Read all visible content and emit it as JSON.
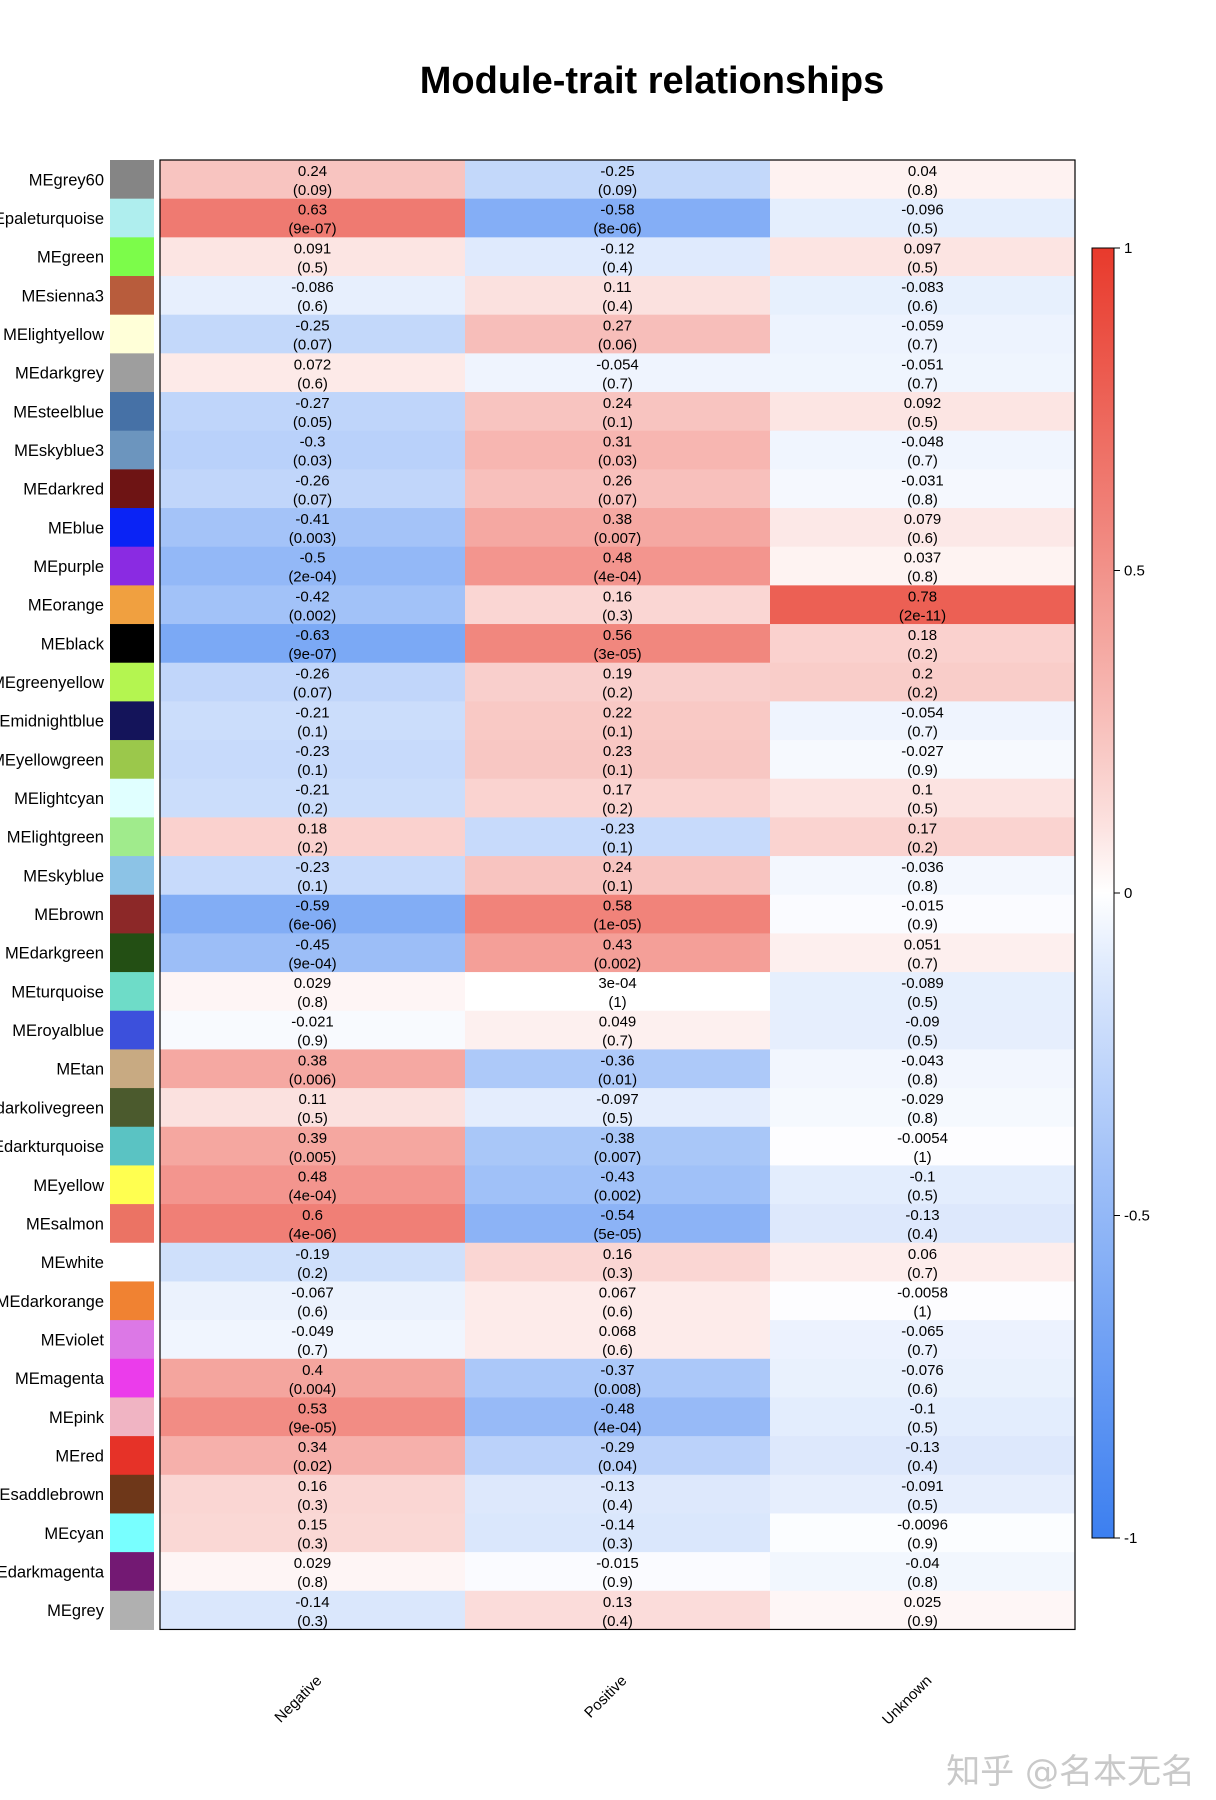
{
  "watermark": "知乎 @名本无名",
  "chart_data": {
    "type": "heatmap",
    "title": "Module-trait relationships",
    "columns": [
      "Negative",
      "Positive",
      "Unknown"
    ],
    "scale": {
      "min": -1,
      "max": 1,
      "ticks": [
        "1",
        "0.5",
        "0",
        "-0.5",
        "-1"
      ],
      "colors": [
        "#3c7ff0",
        "#ffffff",
        "#e83a2c"
      ]
    },
    "rows": [
      {
        "label": "MEgrey60",
        "color": "#858585",
        "values": [
          0.24,
          -0.25,
          0.04
        ],
        "pvalues": [
          "(0.09)",
          "(0.09)",
          "(0.8)"
        ]
      },
      {
        "label": "MEpaleturquoise",
        "color": "#afeeee",
        "values": [
          0.63,
          -0.58,
          -0.096
        ],
        "pvalues": [
          "(9e-07)",
          "(8e-06)",
          "(0.5)"
        ]
      },
      {
        "label": "MEgreen",
        "color": "#7cfc4a",
        "values": [
          0.091,
          -0.12,
          0.097
        ],
        "pvalues": [
          "(0.5)",
          "(0.4)",
          "(0.5)"
        ]
      },
      {
        "label": "MEsienna3",
        "color": "#b85c3c",
        "values": [
          -0.086,
          0.11,
          -0.083
        ],
        "pvalues": [
          "(0.6)",
          "(0.4)",
          "(0.6)"
        ]
      },
      {
        "label": "MElightyellow",
        "color": "#ffffd8",
        "values": [
          -0.25,
          0.27,
          -0.059
        ],
        "pvalues": [
          "(0.07)",
          "(0.06)",
          "(0.7)"
        ]
      },
      {
        "label": "MEdarkgrey",
        "color": "#9e9e9e",
        "values": [
          0.072,
          -0.054,
          -0.051
        ],
        "pvalues": [
          "(0.6)",
          "(0.7)",
          "(0.7)"
        ]
      },
      {
        "label": "MEsteelblue",
        "color": "#4671a6",
        "values": [
          -0.27,
          0.24,
          0.092
        ],
        "pvalues": [
          "(0.05)",
          "(0.1)",
          "(0.5)"
        ]
      },
      {
        "label": "MEskyblue3",
        "color": "#6c95be",
        "values": [
          -0.3,
          0.31,
          -0.048
        ],
        "pvalues": [
          "(0.03)",
          "(0.03)",
          "(0.7)"
        ]
      },
      {
        "label": "MEdarkred",
        "color": "#6e1414",
        "values": [
          -0.26,
          0.26,
          -0.031
        ],
        "pvalues": [
          "(0.07)",
          "(0.07)",
          "(0.8)"
        ]
      },
      {
        "label": "MEblue",
        "color": "#0a23f5",
        "values": [
          -0.41,
          0.38,
          0.079
        ],
        "pvalues": [
          "(0.003)",
          "(0.007)",
          "(0.6)"
        ]
      },
      {
        "label": "MEpurple",
        "color": "#8a2be2",
        "values": [
          -0.5,
          0.48,
          0.037
        ],
        "pvalues": [
          "(2e-04)",
          "(4e-04)",
          "(0.8)"
        ]
      },
      {
        "label": "MEorange",
        "color": "#f0a040",
        "values": [
          -0.42,
          0.16,
          0.78
        ],
        "pvalues": [
          "(0.002)",
          "(0.3)",
          "(2e-11)"
        ]
      },
      {
        "label": "MEblack",
        "color": "#000000",
        "values": [
          -0.63,
          0.56,
          0.18
        ],
        "pvalues": [
          "(9e-07)",
          "(3e-05)",
          "(0.2)"
        ]
      },
      {
        "label": "MEgreenyellow",
        "color": "#b4f550",
        "values": [
          -0.26,
          0.19,
          0.2
        ],
        "pvalues": [
          "(0.07)",
          "(0.2)",
          "(0.2)"
        ]
      },
      {
        "label": "MEmidnightblue",
        "color": "#14145a",
        "values": [
          -0.21,
          0.22,
          -0.054
        ],
        "pvalues": [
          "(0.1)",
          "(0.1)",
          "(0.7)"
        ]
      },
      {
        "label": "MEyellowgreen",
        "color": "#9bc84b",
        "values": [
          -0.23,
          0.23,
          -0.027
        ],
        "pvalues": [
          "(0.1)",
          "(0.1)",
          "(0.9)"
        ]
      },
      {
        "label": "MElightcyan",
        "color": "#e0ffff",
        "values": [
          -0.21,
          0.17,
          0.1
        ],
        "pvalues": [
          "(0.2)",
          "(0.2)",
          "(0.5)"
        ]
      },
      {
        "label": "MElightgreen",
        "color": "#a0eb8c",
        "values": [
          0.18,
          -0.23,
          0.17
        ],
        "pvalues": [
          "(0.2)",
          "(0.1)",
          "(0.2)"
        ]
      },
      {
        "label": "MEskyblue",
        "color": "#8cc3e6",
        "values": [
          -0.23,
          0.24,
          -0.036
        ],
        "pvalues": [
          "(0.1)",
          "(0.1)",
          "(0.8)"
        ]
      },
      {
        "label": "MEbrown",
        "color": "#8c2828",
        "values": [
          -0.59,
          0.58,
          -0.015
        ],
        "pvalues": [
          "(6e-06)",
          "(1e-05)",
          "(0.9)"
        ]
      },
      {
        "label": "MEdarkgreen",
        "color": "#234f14",
        "values": [
          -0.45,
          0.43,
          0.051
        ],
        "pvalues": [
          "(9e-04)",
          "(0.002)",
          "(0.7)"
        ]
      },
      {
        "label": "MEturquoise",
        "color": "#6edcc8",
        "values": [
          0.029,
          "3e-04",
          -0.089
        ],
        "pvalues": [
          "(0.8)",
          "(1)",
          "(0.5)"
        ]
      },
      {
        "label": "MEroyalblue",
        "color": "#3c50dc",
        "values": [
          -0.021,
          0.049,
          -0.09
        ],
        "pvalues": [
          "(0.9)",
          "(0.7)",
          "(0.5)"
        ]
      },
      {
        "label": "MEtan",
        "color": "#c8aa82",
        "values": [
          0.38,
          -0.36,
          -0.043
        ],
        "pvalues": [
          "(0.006)",
          "(0.01)",
          "(0.8)"
        ]
      },
      {
        "label": "MEdarkolivegreen",
        "color": "#4b5a2d",
        "values": [
          0.11,
          -0.097,
          -0.029
        ],
        "pvalues": [
          "(0.5)",
          "(0.5)",
          "(0.8)"
        ]
      },
      {
        "label": "MEdarkturquoise",
        "color": "#5ac3c3",
        "values": [
          0.39,
          -0.38,
          -0.0054
        ],
        "pvalues": [
          "(0.005)",
          "(0.007)",
          "(1)"
        ]
      },
      {
        "label": "MEyellow",
        "color": "#ffff50",
        "values": [
          0.48,
          -0.43,
          -0.1
        ],
        "pvalues": [
          "(4e-04)",
          "(0.002)",
          "(0.5)"
        ]
      },
      {
        "label": "MEsalmon",
        "color": "#eb7364",
        "values": [
          0.6,
          -0.54,
          -0.13
        ],
        "pvalues": [
          "(4e-06)",
          "(5e-05)",
          "(0.4)"
        ]
      },
      {
        "label": "MEwhite",
        "color": "#ffffff",
        "values": [
          -0.19,
          0.16,
          0.06
        ],
        "pvalues": [
          "(0.2)",
          "(0.3)",
          "(0.7)"
        ]
      },
      {
        "label": "MEdarkorange",
        "color": "#f08232",
        "values": [
          -0.067,
          0.067,
          -0.0058
        ],
        "pvalues": [
          "(0.6)",
          "(0.6)",
          "(1)"
        ]
      },
      {
        "label": "MEviolet",
        "color": "#dc78e6",
        "values": [
          -0.049,
          0.068,
          -0.065
        ],
        "pvalues": [
          "(0.7)",
          "(0.6)",
          "(0.7)"
        ]
      },
      {
        "label": "MEmagenta",
        "color": "#eb3ceb",
        "values": [
          0.4,
          -0.37,
          -0.076
        ],
        "pvalues": [
          "(0.004)",
          "(0.008)",
          "(0.6)"
        ]
      },
      {
        "label": "MEpink",
        "color": "#f0b4c3",
        "values": [
          0.53,
          -0.48,
          -0.1
        ],
        "pvalues": [
          "(9e-05)",
          "(4e-04)",
          "(0.5)"
        ]
      },
      {
        "label": "MEred",
        "color": "#e63228",
        "values": [
          0.34,
          -0.29,
          -0.13
        ],
        "pvalues": [
          "(0.02)",
          "(0.04)",
          "(0.4)"
        ]
      },
      {
        "label": "MEsaddlebrown",
        "color": "#6e3719",
        "values": [
          0.16,
          -0.13,
          -0.091
        ],
        "pvalues": [
          "(0.3)",
          "(0.4)",
          "(0.5)"
        ]
      },
      {
        "label": "MEcyan",
        "color": "#78ffff",
        "values": [
          0.15,
          -0.14,
          -0.0096
        ],
        "pvalues": [
          "(0.3)",
          "(0.3)",
          "(0.9)"
        ]
      },
      {
        "label": "MEdarkmagenta",
        "color": "#731973",
        "values": [
          0.029,
          -0.015,
          -0.04
        ],
        "pvalues": [
          "(0.8)",
          "(0.9)",
          "(0.8)"
        ]
      },
      {
        "label": "MEgrey",
        "color": "#b0b0b0",
        "values": [
          -0.14,
          0.13,
          0.025
        ],
        "pvalues": [
          "(0.3)",
          "(0.4)",
          "(0.9)"
        ]
      }
    ]
  }
}
